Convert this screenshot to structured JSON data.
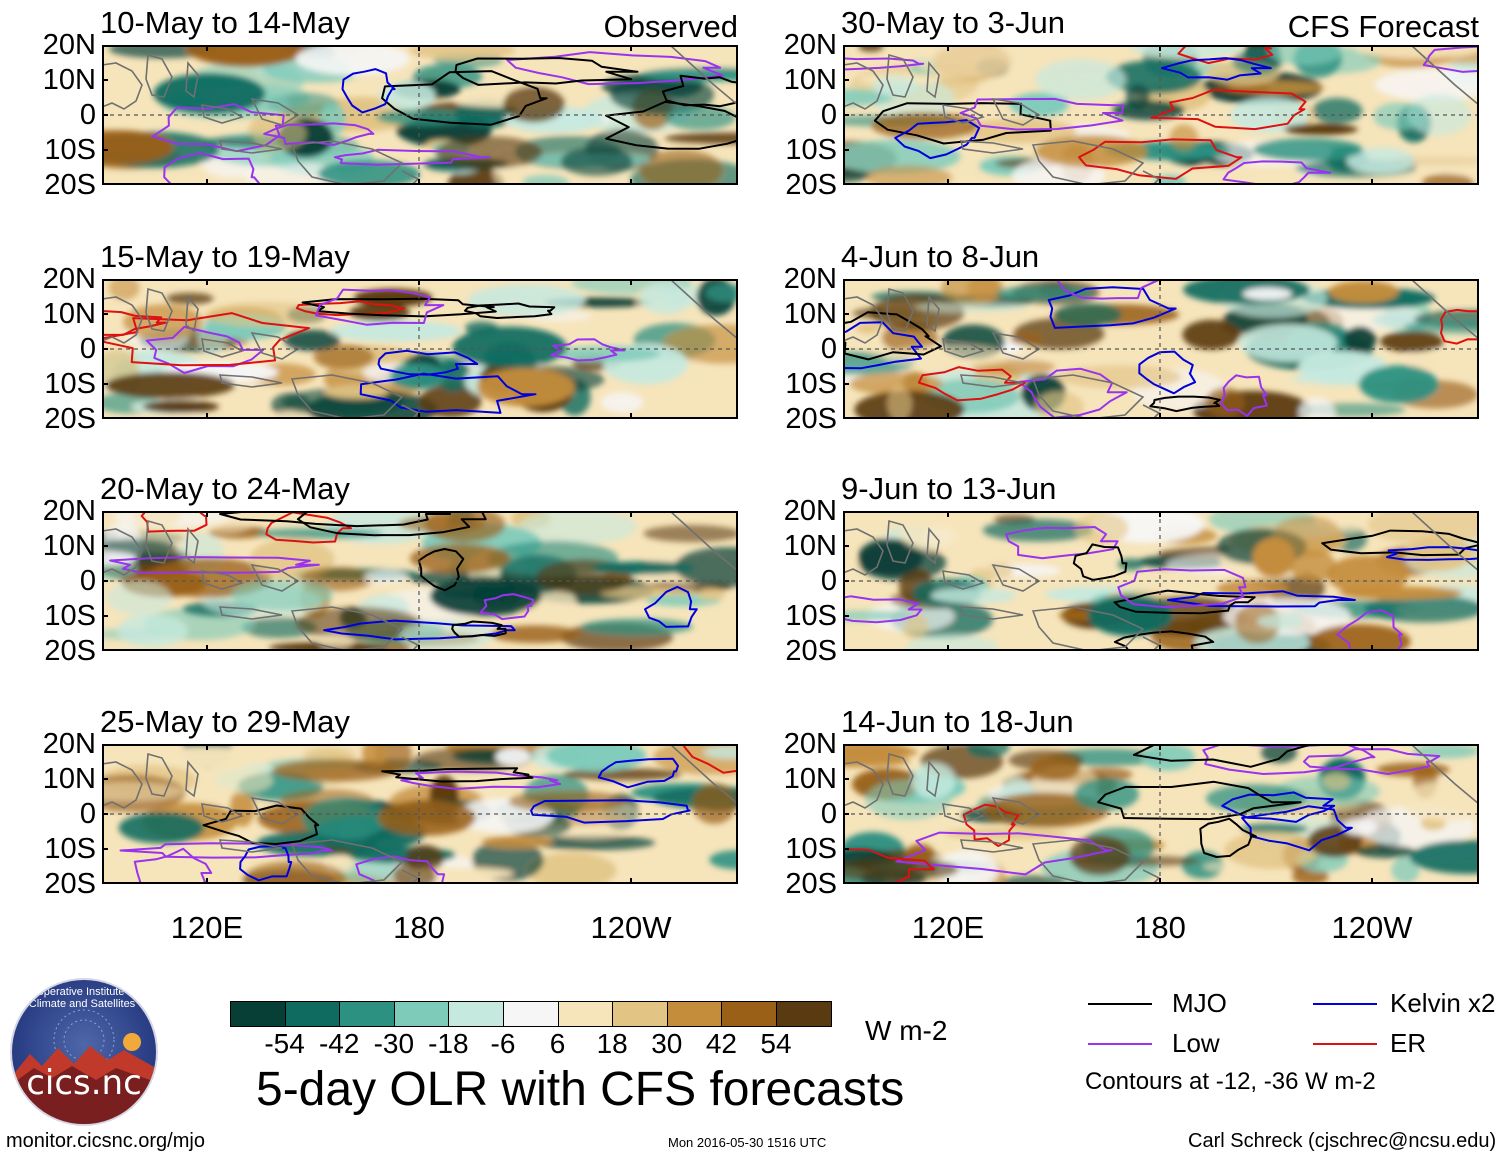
{
  "title": "5-day OLR with CFS forecasts",
  "colors": {
    "mjo": "#000000",
    "kelvin": "#0000dd",
    "low": "#9933ee",
    "er": "#dd1111",
    "land": "#707070"
  },
  "panels": [
    {
      "period": "10-May to 14-May",
      "label": "Observed"
    },
    {
      "period": "15-May to 19-May",
      "label": ""
    },
    {
      "period": "20-May to 24-May",
      "label": ""
    },
    {
      "period": "25-May to 29-May",
      "label": ""
    },
    {
      "period": "30-May to 3-Jun",
      "label": "CFS Forecast"
    },
    {
      "period": "4-Jun to 8-Jun",
      "label": ""
    },
    {
      "period": "9-Jun to 13-Jun",
      "label": ""
    },
    {
      "period": "14-Jun to 18-Jun",
      "label": ""
    }
  ],
  "axes": {
    "lat_ticks": [
      "20N",
      "10N",
      "0",
      "10S",
      "20S"
    ],
    "lon_ticks": [
      "120E",
      "180",
      "120W"
    ]
  },
  "colorbar": {
    "ticks": [
      "-54",
      "-42",
      "-30",
      "-18",
      "-6",
      "6",
      "18",
      "30",
      "42",
      "54"
    ],
    "colors": [
      "#073f37",
      "#0f6b60",
      "#2d9182",
      "#7fcbba",
      "#c6e9df",
      "#f6f6f6",
      "#f6e4bb",
      "#e2c484",
      "#c48d3c",
      "#9a6018",
      "#5a3a10"
    ],
    "units": "W m-2"
  },
  "legend": {
    "items": [
      {
        "name": "MJO",
        "color": "#000000"
      },
      {
        "name": "Kelvin x2",
        "color": "#0000dd"
      },
      {
        "name": "Low",
        "color": "#9933ee"
      },
      {
        "name": "ER",
        "color": "#dd1111"
      }
    ],
    "note": "Contours at -12, -36 W m-2"
  },
  "logo": {
    "text": "cics.nc",
    "arc": "Cooperative Institute for Climate and Satellites"
  },
  "footer": {
    "url": "monitor.cicsnc.org/mjo",
    "timestamp": "Mon 2016-05-30 1516 UTC",
    "credit": "Carl Schreck (cjschrec@ncsu.edu)"
  },
  "chart_data": {
    "type": "heatmap",
    "title": "5-day OLR with CFS forecasts",
    "field": "OLR anomaly",
    "units": "W m-2",
    "lat_range": [
      -20,
      20
    ],
    "lon_range": [
      80,
      300
    ],
    "lat_ticks": [
      "20N",
      "10N",
      "0",
      "10S",
      "20S"
    ],
    "lon_ticks": [
      "120E",
      "180",
      "120W"
    ],
    "color_levels": [
      -54,
      -42,
      -30,
      -18,
      -6,
      6,
      18,
      30,
      42,
      54
    ],
    "contour_levels": [
      -12,
      -36
    ],
    "observed_periods": [
      "10-May to 14-May",
      "15-May to 19-May",
      "20-May to 24-May",
      "25-May to 29-May"
    ],
    "forecast_periods": [
      "30-May to 3-Jun",
      "4-Jun to 8-Jun",
      "9-Jun to 13-Jun",
      "14-Jun to 18-Jun"
    ],
    "series": [
      {
        "name": "MJO",
        "color": "#000000"
      },
      {
        "name": "Kelvin x2",
        "color": "#0000dd"
      },
      {
        "name": "Low",
        "color": "#9933ee"
      },
      {
        "name": "ER",
        "color": "#dd1111"
      }
    ]
  }
}
